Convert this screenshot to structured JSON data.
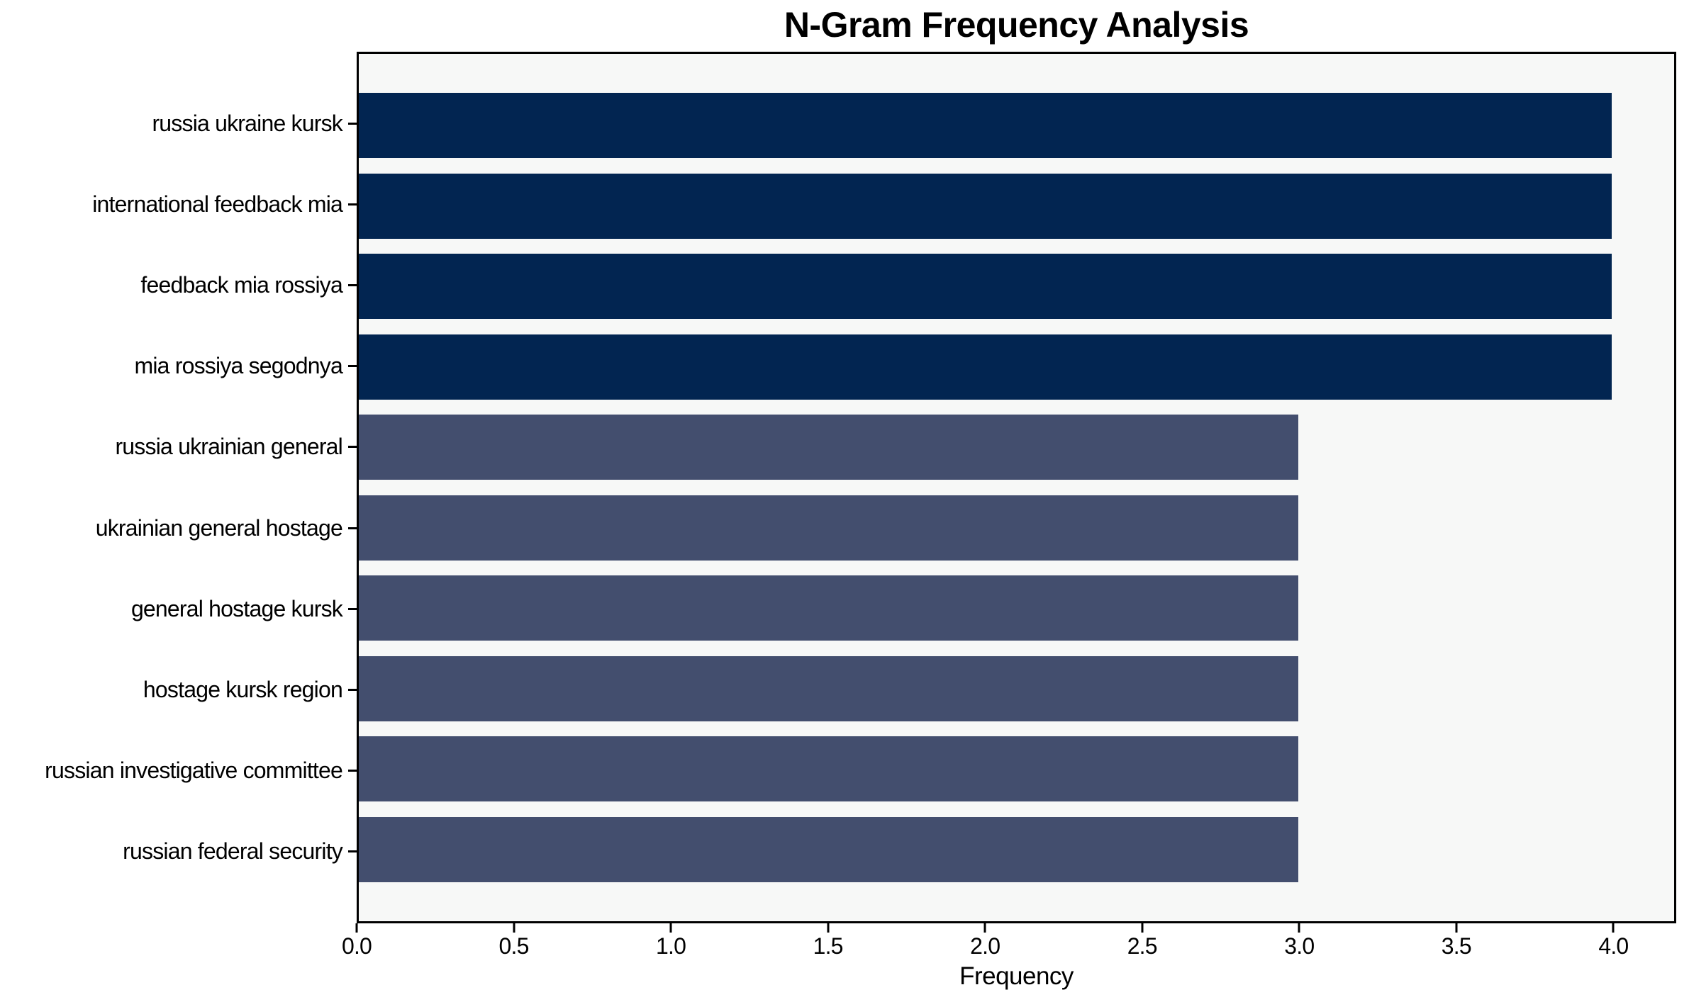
{
  "chart_data": {
    "type": "bar",
    "orientation": "horizontal",
    "title": "N-Gram Frequency Analysis",
    "xlabel": "Frequency",
    "ylabel": "",
    "categories": [
      "russia ukraine kursk",
      "international feedback mia",
      "feedback mia rossiya",
      "mia rossiya segodnya",
      "russia ukrainian general",
      "ukrainian general hostage",
      "general hostage kursk",
      "hostage kursk region",
      "russian investigative committee",
      "russian federal security"
    ],
    "values": [
      4,
      4,
      4,
      4,
      3,
      3,
      3,
      3,
      3,
      3
    ],
    "xlim": [
      0,
      4.2
    ],
    "xticks": [
      0.0,
      0.5,
      1.0,
      1.5,
      2.0,
      2.5,
      3.0,
      3.5,
      4.0
    ],
    "xtick_labels": [
      "0.0",
      "0.5",
      "1.0",
      "1.5",
      "2.0",
      "2.5",
      "3.0",
      "3.5",
      "4.0"
    ],
    "grid": false,
    "legend": null,
    "colors": {
      "bar_color_by_value": {
        "4": "#022551",
        "3": "#434e6e"
      },
      "plot_background": "#f7f8f7",
      "figure_background": "#ffffff",
      "frame": "#000000",
      "text": "#000000"
    }
  }
}
